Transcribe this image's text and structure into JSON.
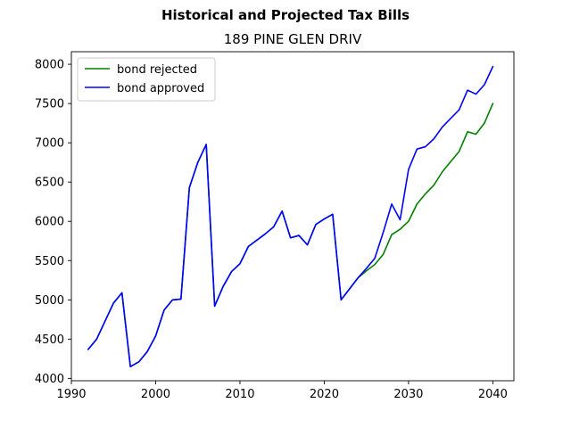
{
  "chart_data": {
    "type": "line",
    "suptitle": "Historical and Projected Tax Bills",
    "title": "189 PINE GLEN DRIV",
    "xlabel": "",
    "ylabel": "",
    "xlim": [
      1990,
      2042.5
    ],
    "ylim": [
      3970,
      8160
    ],
    "xticks": [
      1990,
      2000,
      2010,
      2020,
      2030,
      2040
    ],
    "yticks": [
      4000,
      4500,
      5000,
      5500,
      6000,
      6500,
      7000,
      7500,
      8000
    ],
    "grid": false,
    "legend_position": "upper left",
    "series": [
      {
        "name": "bond rejected",
        "color": "#008000",
        "x": [
          1992,
          1993,
          1994,
          1995,
          1996,
          1997,
          1998,
          1999,
          2000,
          2001,
          2002,
          2003,
          2004,
          2005,
          2006,
          2007,
          2008,
          2009,
          2010,
          2011,
          2012,
          2013,
          2014,
          2015,
          2016,
          2017,
          2018,
          2019,
          2020,
          2021,
          2022,
          2023,
          2024,
          2025,
          2026,
          2027,
          2028,
          2029,
          2030,
          2031,
          2032,
          2033,
          2034,
          2035,
          2036,
          2037,
          2038,
          2039,
          2040
        ],
        "y": [
          4370,
          4500,
          4730,
          4960,
          5090,
          4150,
          4210,
          4340,
          4540,
          4870,
          5000,
          5010,
          6430,
          6750,
          6980,
          4920,
          5170,
          5360,
          5460,
          5680,
          5760,
          5840,
          5930,
          6130,
          5790,
          5820,
          5700,
          5960,
          6030,
          6090,
          5000,
          5140,
          5280,
          5370,
          5450,
          5580,
          5830,
          5900,
          6000,
          6220,
          6350,
          6460,
          6630,
          6760,
          6890,
          7140,
          7110,
          7250,
          7500
        ]
      },
      {
        "name": "bond approved",
        "color": "#0000ff",
        "x": [
          1992,
          1993,
          1994,
          1995,
          1996,
          1997,
          1998,
          1999,
          2000,
          2001,
          2002,
          2003,
          2004,
          2005,
          2006,
          2007,
          2008,
          2009,
          2010,
          2011,
          2012,
          2013,
          2014,
          2015,
          2016,
          2017,
          2018,
          2019,
          2020,
          2021,
          2022,
          2023,
          2024,
          2025,
          2026,
          2027,
          2028,
          2029,
          2030,
          2031,
          2032,
          2033,
          2034,
          2035,
          2036,
          2037,
          2038,
          2039,
          2040
        ],
        "y": [
          4370,
          4500,
          4730,
          4960,
          5090,
          4150,
          4210,
          4340,
          4540,
          4870,
          5000,
          5010,
          6430,
          6750,
          6980,
          4920,
          5170,
          5360,
          5460,
          5680,
          5760,
          5840,
          5930,
          6130,
          5790,
          5820,
          5700,
          5960,
          6030,
          6090,
          5000,
          5140,
          5280,
          5400,
          5530,
          5860,
          6220,
          6020,
          6660,
          6920,
          6950,
          7050,
          7200,
          7310,
          7420,
          7670,
          7620,
          7740,
          7970
        ]
      }
    ]
  }
}
